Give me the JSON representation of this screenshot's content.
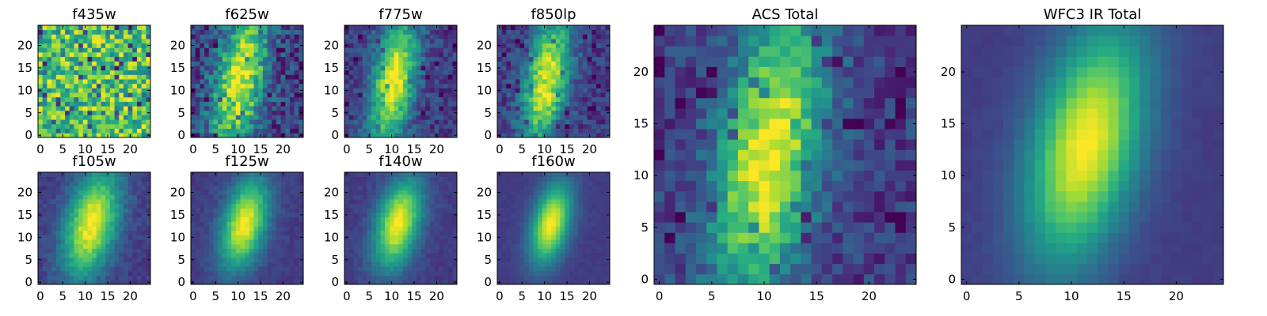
{
  "chart_data": [
    {
      "type": "heatmap",
      "title": "f435w",
      "xticks": [
        "0",
        "5",
        "10",
        "15",
        "20"
      ],
      "yticks": [
        "0",
        "5",
        "10",
        "15",
        "20"
      ],
      "xlim": [
        -0.5,
        24.5
      ],
      "ylim": [
        -0.5,
        24.5
      ],
      "colormap": "viridis",
      "pattern": "noise"
    },
    {
      "type": "heatmap",
      "title": "f625w",
      "xticks": [
        "0",
        "5",
        "10",
        "15",
        "20"
      ],
      "yticks": [
        "0",
        "5",
        "10",
        "15",
        "20"
      ],
      "xlim": [
        -0.5,
        24.5
      ],
      "ylim": [
        -0.5,
        24.5
      ],
      "colormap": "viridis",
      "pattern": "acs-noisy"
    },
    {
      "type": "heatmap",
      "title": "f775w",
      "xticks": [
        "0",
        "5",
        "10",
        "15",
        "20"
      ],
      "yticks": [
        "0",
        "5",
        "10",
        "15",
        "20"
      ],
      "xlim": [
        -0.5,
        24.5
      ],
      "ylim": [
        -0.5,
        24.5
      ],
      "colormap": "viridis",
      "pattern": "acs"
    },
    {
      "type": "heatmap",
      "title": "f850lp",
      "xticks": [
        "0",
        "5",
        "10",
        "15",
        "20"
      ],
      "yticks": [
        "0",
        "5",
        "10",
        "15",
        "20"
      ],
      "xlim": [
        -0.5,
        24.5
      ],
      "ylim": [
        -0.5,
        24.5
      ],
      "colormap": "viridis",
      "pattern": "acs"
    },
    {
      "type": "heatmap",
      "title": "f105w",
      "xticks": [
        "0",
        "5",
        "10",
        "15",
        "20"
      ],
      "yticks": [
        "0",
        "5",
        "10",
        "15",
        "20"
      ],
      "xlim": [
        -0.5,
        24.5
      ],
      "ylim": [
        -0.5,
        24.5
      ],
      "colormap": "viridis",
      "pattern": "ir-wide"
    },
    {
      "type": "heatmap",
      "title": "f125w",
      "xticks": [
        "0",
        "5",
        "10",
        "15",
        "20"
      ],
      "yticks": [
        "0",
        "5",
        "10",
        "15",
        "20"
      ],
      "xlim": [
        -0.5,
        24.5
      ],
      "ylim": [
        -0.5,
        24.5
      ],
      "colormap": "viridis",
      "pattern": "ir"
    },
    {
      "type": "heatmap",
      "title": "f140w",
      "xticks": [
        "0",
        "5",
        "10",
        "15",
        "20"
      ],
      "yticks": [
        "0",
        "5",
        "10",
        "15",
        "20"
      ],
      "xlim": [
        -0.5,
        24.5
      ],
      "ylim": [
        -0.5,
        24.5
      ],
      "colormap": "viridis",
      "pattern": "ir"
    },
    {
      "type": "heatmap",
      "title": "f160w",
      "xticks": [
        "0",
        "5",
        "10",
        "15",
        "20"
      ],
      "yticks": [
        "0",
        "5",
        "10",
        "15",
        "20"
      ],
      "xlim": [
        -0.5,
        24.5
      ],
      "ylim": [
        -0.5,
        24.5
      ],
      "colormap": "viridis",
      "pattern": "ir-sharp"
    },
    {
      "type": "heatmap",
      "title": "ACS Total",
      "xticks": [
        "0",
        "5",
        "10",
        "15",
        "20"
      ],
      "yticks": [
        "0",
        "5",
        "10",
        "15",
        "20"
      ],
      "xlim": [
        -0.5,
        24.5
      ],
      "ylim": [
        -0.5,
        24.5
      ],
      "colormap": "viridis",
      "pattern": "acs"
    },
    {
      "type": "heatmap",
      "title": "WFC3 IR Total",
      "xticks": [
        "0",
        "5",
        "10",
        "15",
        "20"
      ],
      "yticks": [
        "0",
        "5",
        "10",
        "15",
        "20"
      ],
      "xlim": [
        -0.5,
        24.5
      ],
      "ylim": [
        -0.5,
        24.5
      ],
      "colormap": "viridis",
      "pattern": "ir-smooth"
    }
  ]
}
